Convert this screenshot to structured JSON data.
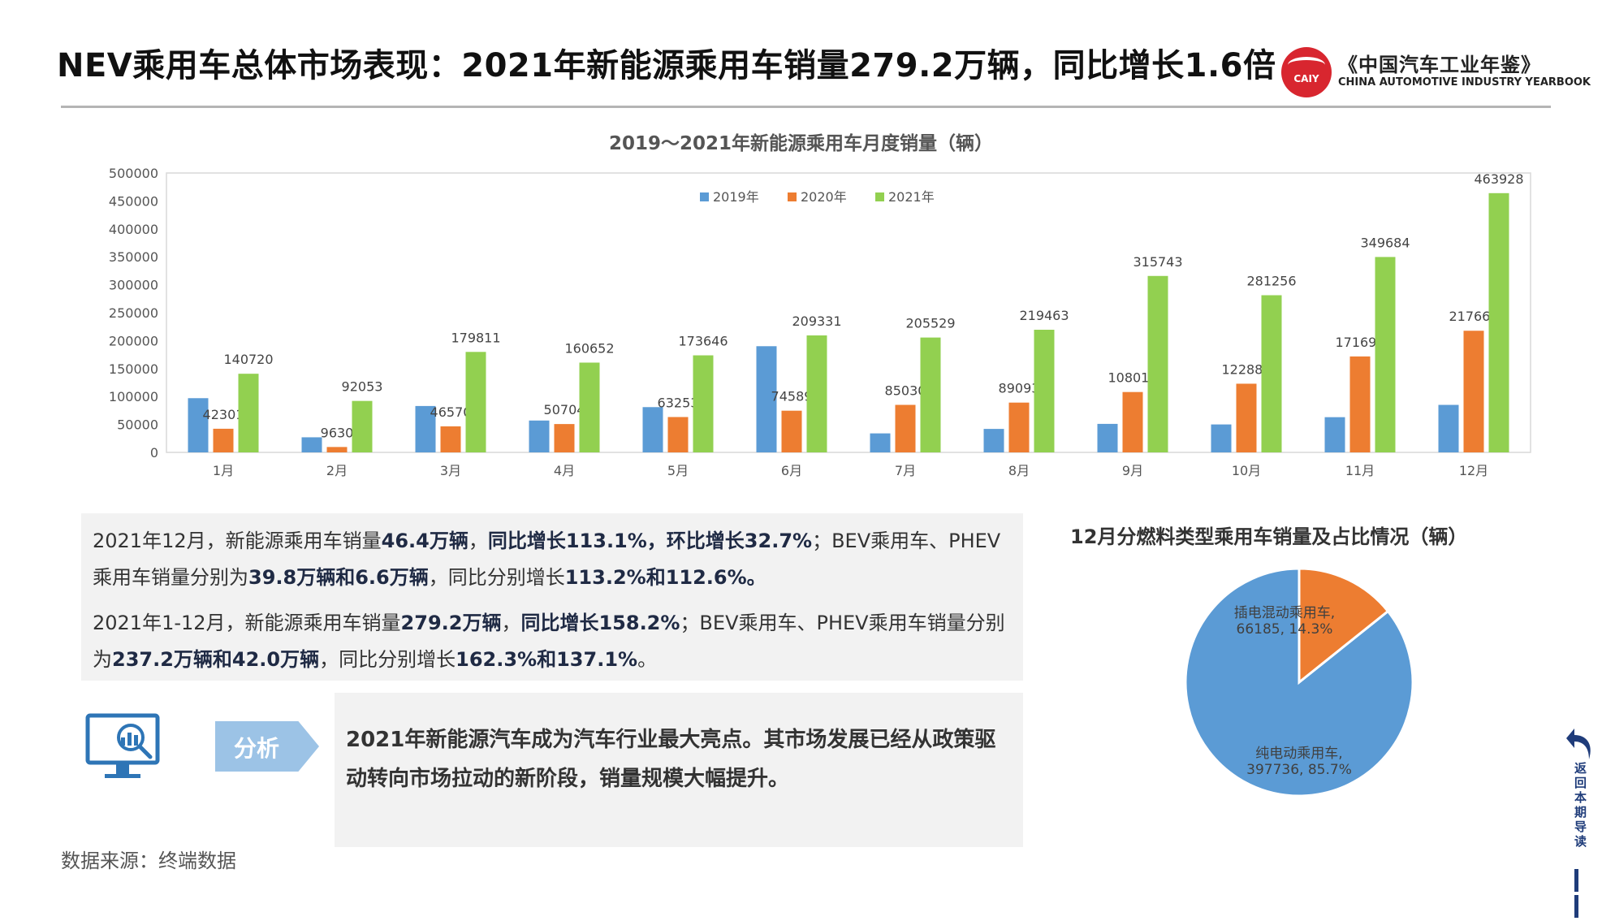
{
  "header": {
    "title": "NEV乘用车总体市场表现：2021年新能源乘用车销量279.2万辆，同比增长1.6倍",
    "logo_text": "CAIY",
    "brand_cn": "《中国汽车工业年鉴》",
    "brand_en": "CHINA AUTOMOTIVE INDUSTRY YEARBOOK"
  },
  "chart_data": [
    {
      "type": "bar",
      "title": "2019～2021年新能源乘用车月度销量（辆）",
      "categories": [
        "1月",
        "2月",
        "3月",
        "4月",
        "5月",
        "6月",
        "7月",
        "8月",
        "9月",
        "10月",
        "11月",
        "12月"
      ],
      "series": [
        {
          "name": "2019年",
          "color": "#5b9bd5",
          "values": [
            97000,
            27000,
            83000,
            57000,
            81000,
            190000,
            34000,
            42000,
            51000,
            50000,
            63000,
            85000
          ],
          "labeled": false
        },
        {
          "name": "2020年",
          "color": "#ed7d31",
          "values": [
            42301,
            9630,
            46570,
            50704,
            63253,
            74589,
            85030,
            89093,
            108016,
            122886,
            171698,
            217661
          ],
          "labeled": true
        },
        {
          "name": "2021年",
          "color": "#92d050",
          "values": [
            140720,
            92053,
            179811,
            160652,
            173646,
            209331,
            205529,
            219463,
            315743,
            281256,
            349684,
            463928
          ],
          "labeled": true
        }
      ],
      "yticks": [
        "0",
        "50000",
        "100000",
        "150000",
        "200000",
        "250000",
        "300000",
        "350000",
        "400000",
        "450000",
        "500000"
      ],
      "ylim": [
        0,
        500000
      ],
      "legend": "top-center",
      "grid": false
    },
    {
      "type": "pie",
      "title": "12月分燃料类型乘用车销量及占比情况（辆）",
      "slices": [
        {
          "name": "纯电动乘用车",
          "value": 397736,
          "percent": "85.7%",
          "color": "#5b9bd5",
          "label_line1": "纯电动乘用车,",
          "label_line2": "397736, 85.7%"
        },
        {
          "name": "插电混动乘用车",
          "value": 66185,
          "percent": "14.3%",
          "color": "#ed7d31",
          "label_line1": "插电混动乘用车,",
          "label_line2": "66185, 14.3%"
        }
      ]
    }
  ],
  "summary": {
    "p1": [
      {
        "t": "2021年12月，新能源乘用车销量",
        "b": false
      },
      {
        "t": "46.4万辆",
        "b": true
      },
      {
        "t": "，",
        "b": false
      },
      {
        "t": "同比增长113.1%，环比增长32.7%",
        "b": true
      },
      {
        "t": "；BEV乘用车、PHEV乘用车销量分别为",
        "b": false
      },
      {
        "t": "39.8万辆和6.6万辆",
        "b": true
      },
      {
        "t": "，同比分别增长",
        "b": false
      },
      {
        "t": "113.2%和112.6%。",
        "b": true
      }
    ],
    "p2": [
      {
        "t": "2021年1-12月，新能源乘用车销量",
        "b": false
      },
      {
        "t": "279.2万辆",
        "b": true
      },
      {
        "t": "，",
        "b": false
      },
      {
        "t": "同比增长158.2%",
        "b": true
      },
      {
        "t": "；BEV乘用车、PHEV乘用车销量分别为",
        "b": false
      },
      {
        "t": "237.2万辆和42.0万辆",
        "b": true
      },
      {
        "t": "，同比分别增长",
        "b": false
      },
      {
        "t": "162.3%和137.1%",
        "b": true
      },
      {
        "t": "。",
        "b": false
      }
    ]
  },
  "analysis": {
    "label": "分析",
    "text": "2021年新能源汽车成为汽车行业最大亮点。其市场发展已经从政策驱动转向市场拉动的新阶段，销量规模大幅提升。"
  },
  "source": "数据来源：终端数据",
  "side_nav": {
    "label": "返回本期导读",
    "icon": "back-arrow-icon"
  }
}
